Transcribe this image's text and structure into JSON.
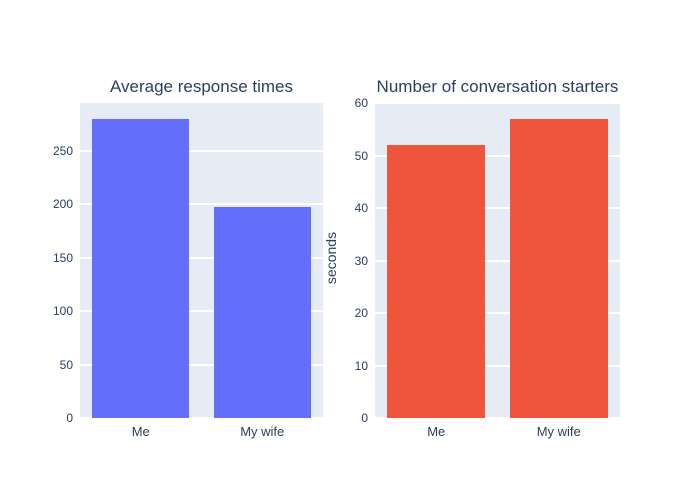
{
  "figure": {
    "background_color": "#ffffff",
    "plot_background_color": "#e5ecf6",
    "grid_color": "#ffffff",
    "text_color": "#2a3f5f"
  },
  "chart_data": [
    {
      "type": "bar",
      "title": "Average response times",
      "categories": [
        "Me",
        "My wife"
      ],
      "values": [
        280,
        197
      ],
      "bar_color": "#636efa",
      "xlabel": "",
      "ylabel": "",
      "ylim": [
        0,
        294.7
      ],
      "yticks": [
        0,
        50,
        100,
        150,
        200,
        250
      ],
      "grid": true,
      "legend": "none"
    },
    {
      "type": "bar",
      "title": "Number of conversation starters",
      "categories": [
        "Me",
        "My wife"
      ],
      "values": [
        52,
        57
      ],
      "bar_color": "#ef553b",
      "xlabel": "",
      "ylabel": "seconds",
      "ylim": [
        0,
        60
      ],
      "yticks": [
        0,
        10,
        20,
        30,
        40,
        50,
        60
      ],
      "grid": true,
      "legend": "none"
    }
  ]
}
